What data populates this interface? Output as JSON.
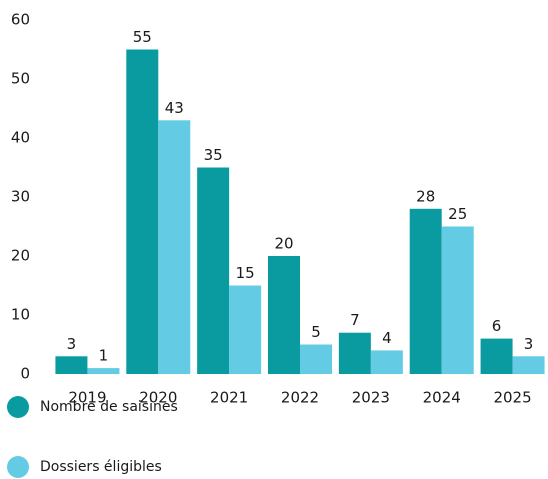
{
  "chart_data": {
    "type": "bar",
    "categories": [
      "2019",
      "2020",
      "2021",
      "2022",
      "2023",
      "2024",
      "2025"
    ],
    "series": [
      {
        "name": "Nombre de saisines",
        "color": "#0a9ba0",
        "values": [
          3,
          55,
          35,
          20,
          7,
          28,
          6
        ]
      },
      {
        "name": "Dossiers éligibles",
        "color": "#63cbe3",
        "values": [
          1,
          43,
          15,
          5,
          4,
          25,
          3
        ]
      }
    ],
    "ylim": [
      0,
      60
    ],
    "yticks": [
      0,
      10,
      20,
      30,
      40,
      50,
      60
    ],
    "grid": false,
    "legend": "bottom-left"
  }
}
